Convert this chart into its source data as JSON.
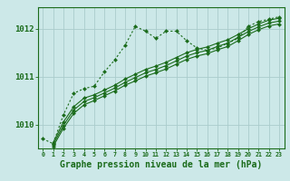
{
  "background_color": "#cce8e8",
  "grid_color": "#aacccc",
  "line_color": "#1a6b1a",
  "marker_color": "#1a6b1a",
  "xlabel": "Graphe pression niveau de la mer (hPa)",
  "xlabel_fontsize": 7,
  "ylabel_labels": [
    "1010",
    "1011",
    "1012"
  ],
  "ylabel_values": [
    1010,
    1011,
    1012
  ],
  "xlim": [
    -0.5,
    23.5
  ],
  "ylim": [
    1009.5,
    1012.45
  ],
  "xticks": [
    0,
    1,
    2,
    3,
    4,
    5,
    6,
    7,
    8,
    9,
    10,
    11,
    12,
    13,
    14,
    15,
    16,
    17,
    18,
    19,
    20,
    21,
    22,
    23
  ],
  "series": [
    {
      "x": [
        0,
        1,
        2,
        3,
        4,
        5,
        6,
        7,
        8,
        9,
        10,
        11,
        12,
        13,
        14,
        15,
        16,
        17,
        18,
        19,
        20,
        21,
        22,
        23
      ],
      "y": [
        1009.7,
        1009.6,
        1010.2,
        1010.65,
        1010.75,
        1010.8,
        1011.1,
        1011.35,
        1011.65,
        1012.05,
        1011.95,
        1011.8,
        1011.95,
        1011.95,
        1011.75,
        1011.6,
        1011.55,
        1011.6,
        1011.7,
        1011.8,
        1012.05,
        1012.15,
        1012.2,
        1012.25
      ],
      "style": "dotted",
      "marker": "D",
      "markersize": 2.2
    },
    {
      "x": [
        1,
        2,
        3,
        4,
        5,
        6,
        7,
        8,
        9,
        10,
        11,
        12,
        13,
        14,
        15,
        16,
        17,
        18,
        19,
        20,
        21,
        22,
        23
      ],
      "y": [
        1009.62,
        1010.05,
        1010.37,
        1010.55,
        1010.62,
        1010.72,
        1010.82,
        1010.95,
        1011.05,
        1011.15,
        1011.22,
        1011.3,
        1011.4,
        1011.5,
        1011.57,
        1011.62,
        1011.7,
        1011.77,
        1011.88,
        1012.0,
        1012.1,
        1012.18,
        1012.22
      ],
      "style": "solid",
      "marker": "D",
      "markersize": 2.2
    },
    {
      "x": [
        1,
        2,
        3,
        4,
        5,
        6,
        7,
        8,
        9,
        10,
        11,
        12,
        13,
        14,
        15,
        16,
        17,
        18,
        19,
        20,
        21,
        22,
        23
      ],
      "y": [
        1009.58,
        1009.98,
        1010.3,
        1010.48,
        1010.56,
        1010.66,
        1010.76,
        1010.88,
        1010.98,
        1011.08,
        1011.15,
        1011.23,
        1011.33,
        1011.43,
        1011.5,
        1011.55,
        1011.63,
        1011.7,
        1011.82,
        1011.94,
        1012.04,
        1012.12,
        1012.16
      ],
      "style": "solid",
      "marker": "D",
      "markersize": 2.2
    },
    {
      "x": [
        1,
        2,
        3,
        4,
        5,
        6,
        7,
        8,
        9,
        10,
        11,
        12,
        13,
        14,
        15,
        16,
        17,
        18,
        19,
        20,
        21,
        22,
        23
      ],
      "y": [
        1009.54,
        1009.92,
        1010.23,
        1010.41,
        1010.5,
        1010.6,
        1010.7,
        1010.82,
        1010.91,
        1011.01,
        1011.08,
        1011.16,
        1011.26,
        1011.36,
        1011.43,
        1011.48,
        1011.56,
        1011.63,
        1011.75,
        1011.88,
        1011.98,
        1012.06,
        1012.1
      ],
      "style": "solid",
      "marker": "D",
      "markersize": 2.2
    }
  ]
}
